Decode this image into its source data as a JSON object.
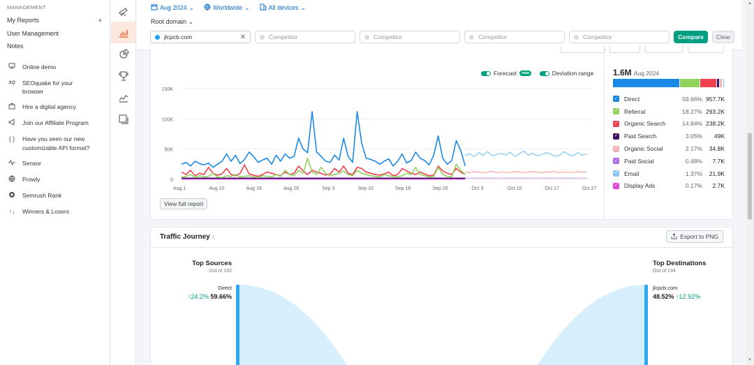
{
  "sidebar": {
    "section_title": "MANAGEMENT",
    "management_items": [
      {
        "label": "My Reports",
        "plus": "+"
      },
      {
        "label": "User Management"
      },
      {
        "label": "Notes"
      }
    ],
    "links": [
      {
        "label": "Online demo",
        "icon": "presentation-icon"
      },
      {
        "label": "SEOquake for your\nbrowser",
        "icon": "seoquake-icon"
      },
      {
        "label": "Hire a digital agency",
        "icon": "agency-icon"
      },
      {
        "label": "Join our Affiliate Program",
        "icon": "megaphone-icon"
      },
      {
        "label": "Have you seen our new\ncustomizable API format?",
        "icon": "braces-icon"
      },
      {
        "label": "Sensor",
        "icon": "pulse-icon"
      },
      {
        "label": "Prowly",
        "icon": "prowly-icon"
      },
      {
        "label": "Semrush Rank",
        "icon": "rank-icon"
      },
      {
        "label": "Winners & Losers",
        "icon": "arrows-icon"
      }
    ]
  },
  "topbar": {
    "date": "Aug 2024",
    "region": "Worldwide",
    "devices": "All devices",
    "root_domain": "Root domain",
    "domain": "jlcpcb.com",
    "competitor_placeholder": "Competitor",
    "compare_label": "Compare",
    "clear_label": "Clear"
  },
  "trend": {
    "forecast_label": "Forecast",
    "new_badge": "new",
    "deviation_label": "Deviation range",
    "view_full_report": "View full report",
    "total": "1.6M",
    "total_date": "Aug 2024",
    "channels": [
      {
        "name": "Direct",
        "pct": "59.66%",
        "value": "957.7K",
        "share": 59.66,
        "color": "#1a88e6"
      },
      {
        "name": "Referral",
        "pct": "18.27%",
        "value": "293.2K",
        "share": 18.27,
        "color": "#8fd35b"
      },
      {
        "name": "Organic Search",
        "pct": "14.84%",
        "value": "238.2K",
        "share": 14.84,
        "color": "#f04050"
      },
      {
        "name": "Paid Search",
        "pct": "3.05%",
        "value": "49K",
        "share": 3.05,
        "color": "#3b1363"
      },
      {
        "name": "Organic Social",
        "pct": "2.17%",
        "value": "34.8K",
        "share": 2.17,
        "color": "#f6b3b0"
      },
      {
        "name": "Paid Social",
        "pct": "0.48%",
        "value": "7.7K",
        "share": 0.48,
        "color": "#b06be8"
      },
      {
        "name": "Email",
        "pct": "1.37%",
        "value": "21.9K",
        "share": 1.37,
        "color": "#8cc8f3"
      },
      {
        "name": "Display Ads",
        "pct": "0.17%",
        "value": "2.7K",
        "share": 0.17,
        "color": "#e048d8"
      }
    ]
  },
  "chart_data": {
    "type": "line",
    "ylim": [
      0,
      150000
    ],
    "y_ticks": [
      "150K",
      "100K",
      "50K",
      "0"
    ],
    "x_ticks": [
      "Aug 1",
      "Aug 10",
      "Aug 18",
      "Aug 26",
      "Sep 3",
      "Sep 10",
      "Sep 18",
      "Sep 26",
      "Oct 3",
      "Oct 10",
      "Oct 17",
      "Oct 27"
    ],
    "x_start": "Aug 1",
    "x_end": "Oct 27",
    "actual_end": "Sep 30",
    "series": [
      {
        "name": "Direct",
        "color": "#1a88e6",
        "values": [
          25000,
          28000,
          22000,
          30000,
          26000,
          24000,
          27000,
          20000,
          25000,
          30000,
          42000,
          30000,
          40000,
          26000,
          33000,
          45000,
          38000,
          28000,
          32000,
          35000,
          25000,
          40000,
          30000,
          42000,
          35000,
          38000,
          68000,
          50000,
          44000,
          112000,
          45000,
          38000,
          30000,
          28000,
          40000,
          32000,
          68000,
          38000,
          28000,
          112000,
          60000,
          35000,
          33000,
          30000,
          25000,
          30000,
          34000,
          22000,
          30000,
          42000,
          27000,
          31000,
          45000,
          35000,
          31000,
          24000,
          40000,
          72000,
          35000,
          25000,
          31000,
          64000,
          48000,
          22000
        ]
      },
      {
        "name": "Referral",
        "color": "#8fd35b",
        "values": [
          4000,
          5000,
          8000,
          3000,
          6000,
          4000,
          5000,
          10000,
          4000,
          3000,
          6000,
          5000,
          8000,
          4000,
          5000,
          6000,
          4000,
          3000,
          6000,
          5000,
          4000,
          8000,
          5000,
          15000,
          8000,
          6000,
          15000,
          10000,
          35000,
          12000,
          8000,
          20000,
          10000,
          6000,
          8000,
          10000,
          14000,
          8000,
          6000,
          15000,
          10000,
          8000,
          6000,
          5000,
          4000,
          8000,
          6000,
          5000,
          4000,
          6000,
          10000,
          8000,
          20000,
          8000,
          6000,
          4000,
          5000,
          20000,
          8000,
          5000,
          4000,
          25000,
          15000,
          8000
        ]
      },
      {
        "name": "Organic Search",
        "color": "#f04050",
        "values": [
          12000,
          8000,
          15000,
          6000,
          10000,
          8000,
          20000,
          10000,
          7000,
          9000,
          18000,
          8000,
          6000,
          10000,
          24000,
          9000,
          7000,
          5000,
          8000,
          12000,
          10000,
          8000,
          6000,
          12000,
          8000,
          10000,
          22000,
          14000,
          8000,
          15000,
          12000,
          10000,
          7000,
          9000,
          18000,
          12000,
          22000,
          10000,
          8000,
          20000,
          18000,
          12000,
          10000,
          8000,
          7000,
          9000,
          12000,
          6000,
          8000,
          18000,
          14000,
          10000,
          8000,
          12000,
          9000,
          6000,
          7000,
          22000,
          14000,
          10000,
          8000,
          18000,
          12000,
          8000
        ]
      },
      {
        "name": "Paid Search",
        "color": "#3b1363",
        "values": [
          2000,
          2000,
          2000,
          2000,
          2000,
          2000,
          2000,
          2000,
          2000,
          2000,
          2000,
          2000,
          2000,
          2000,
          2000,
          2000,
          2000,
          2000,
          2000,
          2000,
          2000,
          2000,
          2000,
          2000,
          2000,
          2000,
          2000,
          2000,
          2000,
          2000,
          2000,
          2000,
          2000,
          2000,
          2000,
          2000,
          2000,
          2000,
          2000,
          2000,
          2000,
          2000,
          2000,
          2000,
          2000,
          2000,
          2000,
          2000,
          2000,
          2000,
          2000,
          2000,
          2000,
          2000,
          2000,
          2000,
          2000,
          2000,
          2000,
          2000,
          2000,
          2000,
          2000,
          2000
        ]
      },
      {
        "name": "Display Ads",
        "color": "#e048d8",
        "values": [
          500,
          500,
          500,
          500,
          500,
          500,
          500,
          500,
          500,
          500,
          500,
          500,
          500,
          500,
          500,
          500,
          500,
          500,
          500,
          500,
          500,
          500,
          500,
          500,
          500,
          500,
          500,
          500,
          500,
          500,
          500,
          500,
          500,
          500,
          500,
          500,
          500,
          500,
          500,
          500,
          500,
          500,
          500,
          500,
          500,
          500,
          500,
          500,
          500,
          500,
          500,
          500,
          500,
          500,
          500,
          500,
          500,
          500,
          500,
          500,
          500,
          500,
          500,
          500
        ]
      }
    ],
    "forecast": [
      {
        "name": "Direct",
        "color": "#9fd0f5",
        "values": [
          40000,
          42000,
          38000,
          44000,
          40000,
          46000,
          39000,
          41000,
          43000,
          40000,
          45000,
          38000,
          42000,
          47000,
          40000,
          43000,
          39000,
          41000,
          44000,
          42000,
          38000,
          40000,
          46000,
          41000,
          39000,
          44000,
          40000,
          42000
        ]
      },
      {
        "name": "Organic Search",
        "color": "#f7b9b5",
        "values": [
          12000,
          11000,
          13000,
          12000,
          11000,
          12000,
          13000,
          11000,
          12000,
          12000,
          11000,
          13000,
          12000,
          11000,
          12000,
          13000,
          12000,
          11000,
          12000,
          12000,
          13000,
          11000,
          12000,
          12000,
          11000,
          13000,
          12000,
          12000
        ]
      },
      {
        "name": "Paid Social",
        "color": "#d9b8f2",
        "values": [
          2000,
          2000,
          2000,
          2000,
          2000,
          2000,
          2000,
          2000,
          2000,
          2000,
          2000,
          2000,
          2000,
          2000,
          2000,
          2000,
          2000,
          2000,
          2000,
          2000,
          2000,
          2000,
          2000,
          2000,
          2000,
          2000,
          2000,
          2000
        ]
      }
    ]
  },
  "journey": {
    "title": "Traffic Journey",
    "info_glyph": "i",
    "export_label": "Export to PNG",
    "top_sources_title": "Top Sources",
    "top_sources_sub": "Out of 192",
    "source_name": "Direct",
    "source_change": "↑24.2%",
    "source_pct": "59.66%",
    "top_dest_title": "Top Destinations",
    "top_dest_sub": "Out of 134",
    "dest_name": "jlcpcb.com",
    "dest_pct": "48.52%",
    "dest_change": "↑12.92%"
  }
}
